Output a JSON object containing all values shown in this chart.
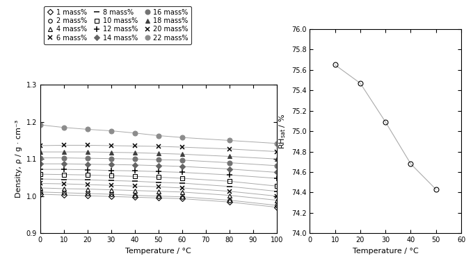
{
  "left_plot": {
    "xlabel": "Temperature / °C",
    "ylabel": "Density, ρ / g · cm⁻³",
    "xlim": [
      0,
      100
    ],
    "ylim": [
      0.9,
      1.3
    ],
    "xticks": [
      0,
      10,
      20,
      30,
      40,
      50,
      60,
      70,
      80,
      90,
      100
    ],
    "yticks": [
      0.9,
      1.0,
      1.1,
      1.2,
      1.3
    ],
    "series": [
      {
        "label": "1 mass%",
        "marker": "D",
        "filled": false,
        "gray": 0.0,
        "ms": 4,
        "data": [
          [
            0,
            1.005
          ],
          [
            10,
            1.003
          ],
          [
            20,
            1.001
          ],
          [
            30,
            0.999
          ],
          [
            40,
            0.997
          ],
          [
            50,
            0.995
          ],
          [
            60,
            0.993
          ],
          [
            80,
            0.984
          ],
          [
            100,
            0.97
          ]
        ]
      },
      {
        "label": "2 mass%",
        "marker": "o",
        "filled": false,
        "gray": 0.0,
        "ms": 4,
        "data": [
          [
            0,
            1.011
          ],
          [
            10,
            1.009
          ],
          [
            20,
            1.007
          ],
          [
            30,
            1.005
          ],
          [
            40,
            1.002
          ],
          [
            50,
            1.0
          ],
          [
            60,
            0.998
          ],
          [
            80,
            0.989
          ],
          [
            100,
            0.975
          ]
        ]
      },
      {
        "label": "4 mass%",
        "marker": "^",
        "filled": false,
        "gray": 0.0,
        "ms": 4,
        "data": [
          [
            0,
            1.022
          ],
          [
            10,
            1.02
          ],
          [
            20,
            1.019
          ],
          [
            30,
            1.017
          ],
          [
            40,
            1.015
          ],
          [
            50,
            1.013
          ],
          [
            60,
            1.011
          ],
          [
            80,
            1.002
          ],
          [
            100,
            0.989
          ]
        ]
      },
      {
        "label": "6 mass%",
        "marker": "x",
        "filled": false,
        "gray": 0.0,
        "ms": 5,
        "data": [
          [
            0,
            1.034
          ],
          [
            10,
            1.033
          ],
          [
            20,
            1.031
          ],
          [
            30,
            1.029
          ],
          [
            40,
            1.027
          ],
          [
            50,
            1.025
          ],
          [
            60,
            1.022
          ],
          [
            80,
            1.013
          ],
          [
            100,
            1.0
          ]
        ]
      },
      {
        "label": "8 mass%",
        "marker": "_",
        "filled": false,
        "gray": 0.0,
        "ms": 6,
        "data": [
          [
            0,
            1.046
          ],
          [
            10,
            1.045
          ],
          [
            20,
            1.044
          ],
          [
            30,
            1.042
          ],
          [
            40,
            1.04
          ],
          [
            50,
            1.037
          ],
          [
            60,
            1.035
          ],
          [
            80,
            1.026
          ],
          [
            100,
            1.013
          ]
        ]
      },
      {
        "label": "10 mass%",
        "marker": "s",
        "filled": false,
        "gray": 0.0,
        "ms": 4,
        "data": [
          [
            0,
            1.059
          ],
          [
            10,
            1.058
          ],
          [
            20,
            1.057
          ],
          [
            30,
            1.055
          ],
          [
            40,
            1.053
          ],
          [
            50,
            1.051
          ],
          [
            60,
            1.048
          ],
          [
            80,
            1.04
          ],
          [
            100,
            1.027
          ]
        ]
      },
      {
        "label": "12 mass%",
        "marker": "+",
        "filled": false,
        "gray": 0.0,
        "ms": 6,
        "data": [
          [
            0,
            1.072
          ],
          [
            10,
            1.072
          ],
          [
            20,
            1.071
          ],
          [
            30,
            1.069
          ],
          [
            40,
            1.068
          ],
          [
            50,
            1.066
          ],
          [
            60,
            1.064
          ],
          [
            80,
            1.057
          ],
          [
            100,
            1.048
          ]
        ]
      },
      {
        "label": "14 mass%",
        "marker": "D",
        "filled": true,
        "gray": 0.4,
        "ms": 4,
        "data": [
          [
            0,
            1.087
          ],
          [
            10,
            1.087
          ],
          [
            20,
            1.086
          ],
          [
            30,
            1.085
          ],
          [
            40,
            1.084
          ],
          [
            50,
            1.082
          ],
          [
            60,
            1.08
          ],
          [
            80,
            1.073
          ],
          [
            100,
            1.064
          ]
        ]
      },
      {
        "label": "16 mass%",
        "marker": "o",
        "filled": true,
        "gray": 0.45,
        "ms": 5,
        "data": [
          [
            0,
            1.103
          ],
          [
            10,
            1.103
          ],
          [
            20,
            1.102
          ],
          [
            30,
            1.101
          ],
          [
            40,
            1.1
          ],
          [
            50,
            1.098
          ],
          [
            60,
            1.097
          ],
          [
            80,
            1.09
          ],
          [
            100,
            1.082
          ]
        ]
      },
      {
        "label": "18 mass%",
        "marker": "^",
        "filled": true,
        "gray": 0.25,
        "ms": 5,
        "data": [
          [
            0,
            1.119
          ],
          [
            10,
            1.119
          ],
          [
            20,
            1.119
          ],
          [
            30,
            1.118
          ],
          [
            40,
            1.117
          ],
          [
            50,
            1.115
          ],
          [
            60,
            1.113
          ],
          [
            80,
            1.107
          ],
          [
            100,
            1.1
          ]
        ]
      },
      {
        "label": "20 mass%",
        "marker": "x",
        "filled": true,
        "gray": 0.25,
        "ms": 5,
        "data": [
          [
            0,
            1.136
          ],
          [
            10,
            1.137
          ],
          [
            20,
            1.137
          ],
          [
            30,
            1.136
          ],
          [
            40,
            1.135
          ],
          [
            50,
            1.134
          ],
          [
            60,
            1.132
          ],
          [
            80,
            1.127
          ],
          [
            100,
            1.12
          ]
        ]
      },
      {
        "label": "22 mass%",
        "marker": "o",
        "filled": true,
        "gray": 0.55,
        "ms": 5,
        "data": [
          [
            0,
            1.192
          ],
          [
            10,
            1.185
          ],
          [
            20,
            1.18
          ],
          [
            30,
            1.176
          ],
          [
            40,
            1.17
          ],
          [
            50,
            1.163
          ],
          [
            60,
            1.158
          ],
          [
            80,
            1.15
          ],
          [
            100,
            1.142
          ]
        ]
      }
    ]
  },
  "right_plot": {
    "xlabel": "Temperature / °C",
    "ylabel": "RH$_\\mathregular{sat}$ / %",
    "xlim": [
      0,
      60
    ],
    "ylim": [
      74.0,
      76.0
    ],
    "xticks": [
      0,
      10,
      20,
      30,
      40,
      50,
      60
    ],
    "yticks": [
      74.0,
      74.2,
      74.4,
      74.6,
      74.8,
      75.0,
      75.2,
      75.4,
      75.6,
      75.8,
      76.0
    ],
    "temp": [
      10,
      20,
      30,
      40,
      50
    ],
    "rh": [
      75.65,
      75.47,
      75.09,
      74.68,
      74.43
    ]
  },
  "line_color": "#aaaaaa",
  "background": "#ffffff"
}
